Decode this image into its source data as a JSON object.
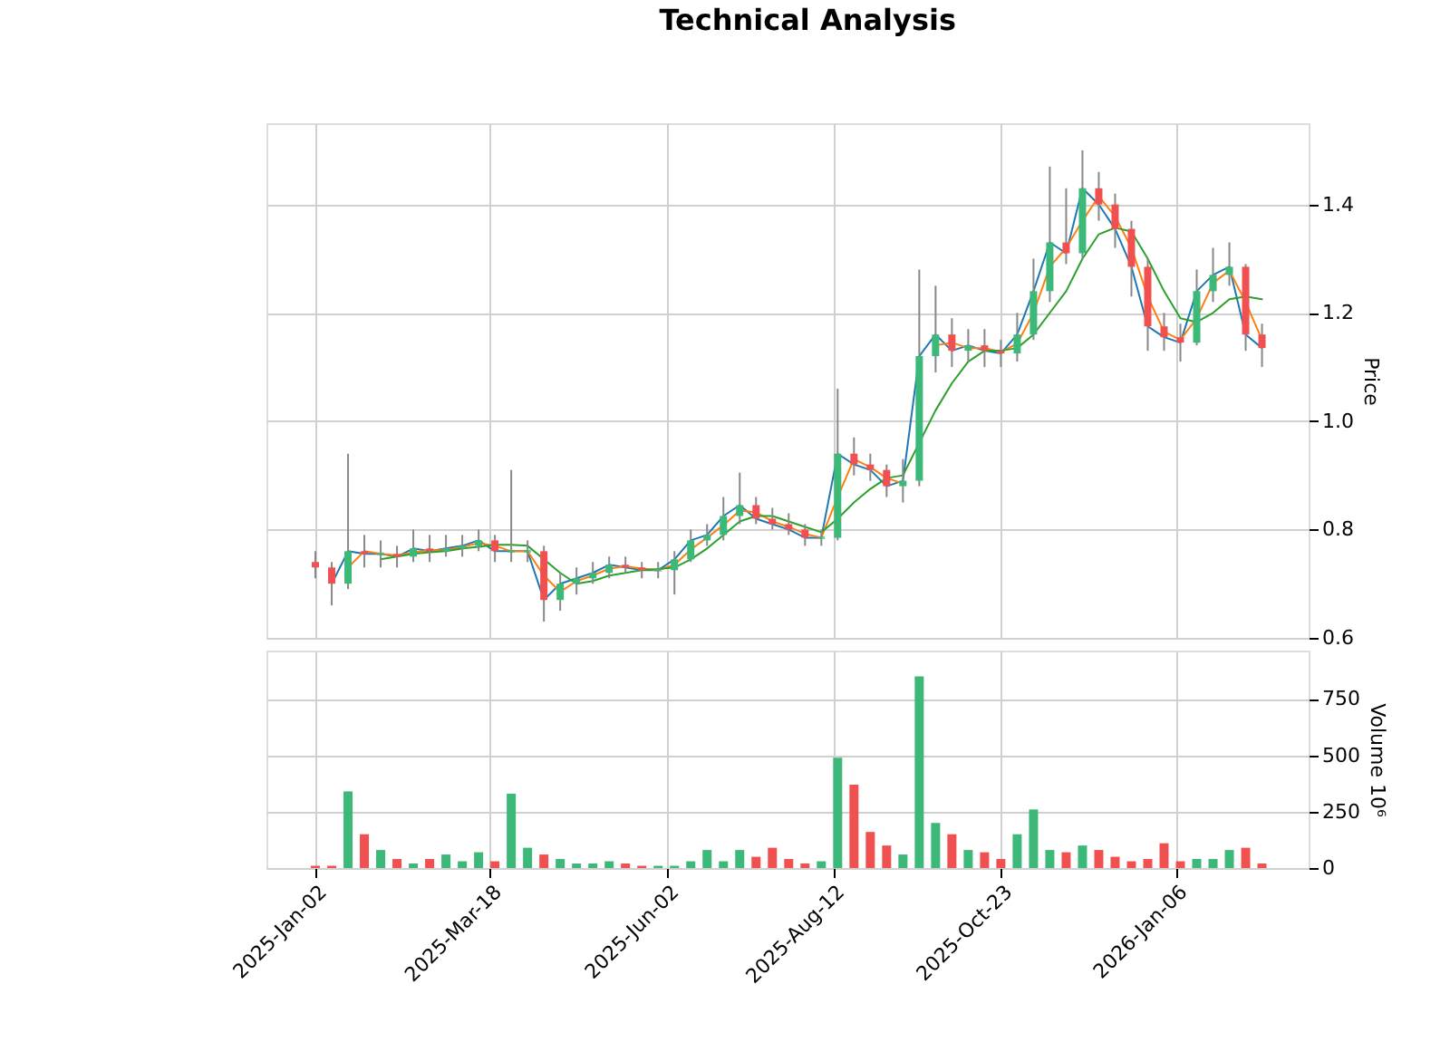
{
  "chart_data": [
    {
      "type": "candlestick",
      "title": "Technical Analysis",
      "ylabel": "Price",
      "grid": true,
      "tick_labels": "y",
      "x": [
        "2025-01-02",
        "2025-01-09",
        "2025-01-16",
        "2025-01-23",
        "2025-01-30",
        "2025-02-06",
        "2025-02-13",
        "2025-02-20",
        "2025-02-27",
        "2025-03-06",
        "2025-03-13",
        "2025-03-20",
        "2025-03-27",
        "2025-04-03",
        "2025-04-10",
        "2025-04-17",
        "2025-04-24",
        "2025-05-01",
        "2025-05-08",
        "2025-05-15",
        "2025-05-22",
        "2025-05-29",
        "2025-06-05",
        "2025-06-12",
        "2025-06-19",
        "2025-06-26",
        "2025-07-03",
        "2025-07-10",
        "2025-07-17",
        "2025-07-24",
        "2025-07-31",
        "2025-08-07",
        "2025-08-14",
        "2025-08-21",
        "2025-08-28",
        "2025-09-04",
        "2025-09-11",
        "2025-09-18",
        "2025-09-25",
        "2025-10-02",
        "2025-10-09",
        "2025-10-16",
        "2025-10-23",
        "2025-10-30",
        "2025-11-06",
        "2025-11-13",
        "2025-11-20",
        "2025-11-27",
        "2025-12-04",
        "2025-12-11",
        "2025-12-18",
        "2025-12-25",
        "2026-01-01",
        "2026-01-08",
        "2026-01-15",
        "2026-01-22",
        "2026-01-29",
        "2026-02-05",
        "2026-02-12"
      ],
      "ohlc": [
        [
          0.74,
          0.76,
          0.71,
          0.73
        ],
        [
          0.73,
          0.74,
          0.66,
          0.7
        ],
        [
          0.7,
          0.94,
          0.69,
          0.76
        ],
        [
          0.76,
          0.79,
          0.73,
          0.755
        ],
        [
          0.755,
          0.78,
          0.73,
          0.755
        ],
        [
          0.755,
          0.77,
          0.73,
          0.75
        ],
        [
          0.75,
          0.8,
          0.74,
          0.765
        ],
        [
          0.765,
          0.79,
          0.74,
          0.76
        ],
        [
          0.76,
          0.79,
          0.75,
          0.765
        ],
        [
          0.765,
          0.79,
          0.75,
          0.77
        ],
        [
          0.77,
          0.8,
          0.76,
          0.78
        ],
        [
          0.78,
          0.79,
          0.74,
          0.76
        ],
        [
          0.76,
          0.91,
          0.74,
          0.76
        ],
        [
          0.76,
          0.78,
          0.74,
          0.76
        ],
        [
          0.76,
          0.77,
          0.63,
          0.67
        ],
        [
          0.67,
          0.72,
          0.65,
          0.7
        ],
        [
          0.7,
          0.73,
          0.68,
          0.71
        ],
        [
          0.71,
          0.74,
          0.7,
          0.72
        ],
        [
          0.72,
          0.75,
          0.71,
          0.735
        ],
        [
          0.735,
          0.75,
          0.72,
          0.73
        ],
        [
          0.73,
          0.74,
          0.71,
          0.725
        ],
        [
          0.725,
          0.74,
          0.71,
          0.725
        ],
        [
          0.725,
          0.76,
          0.68,
          0.745
        ],
        [
          0.745,
          0.8,
          0.74,
          0.78
        ],
        [
          0.78,
          0.81,
          0.77,
          0.79
        ],
        [
          0.79,
          0.86,
          0.78,
          0.825
        ],
        [
          0.825,
          0.905,
          0.81,
          0.845
        ],
        [
          0.845,
          0.86,
          0.81,
          0.82
        ],
        [
          0.82,
          0.84,
          0.8,
          0.81
        ],
        [
          0.81,
          0.83,
          0.79,
          0.8
        ],
        [
          0.8,
          0.81,
          0.77,
          0.785
        ],
        [
          0.785,
          0.8,
          0.77,
          0.785
        ],
        [
          0.785,
          1.06,
          0.78,
          0.94
        ],
        [
          0.94,
          0.97,
          0.9,
          0.92
        ],
        [
          0.92,
          0.94,
          0.89,
          0.91
        ],
        [
          0.91,
          0.92,
          0.86,
          0.88
        ],
        [
          0.88,
          0.93,
          0.85,
          0.89
        ],
        [
          0.89,
          1.28,
          0.88,
          1.12
        ],
        [
          1.12,
          1.25,
          1.09,
          1.16
        ],
        [
          1.16,
          1.19,
          1.1,
          1.13
        ],
        [
          1.13,
          1.17,
          1.11,
          1.14
        ],
        [
          1.14,
          1.17,
          1.1,
          1.13
        ],
        [
          1.13,
          1.15,
          1.1,
          1.125
        ],
        [
          1.125,
          1.2,
          1.11,
          1.16
        ],
        [
          1.16,
          1.3,
          1.15,
          1.24
        ],
        [
          1.24,
          1.47,
          1.22,
          1.33
        ],
        [
          1.33,
          1.43,
          1.29,
          1.31
        ],
        [
          1.31,
          1.5,
          1.3,
          1.43
        ],
        [
          1.43,
          1.46,
          1.37,
          1.4
        ],
        [
          1.4,
          1.42,
          1.32,
          1.355
        ],
        [
          1.355,
          1.37,
          1.23,
          1.285
        ],
        [
          1.285,
          1.3,
          1.13,
          1.175
        ],
        [
          1.175,
          1.2,
          1.13,
          1.155
        ],
        [
          1.155,
          1.18,
          1.11,
          1.145
        ],
        [
          1.145,
          1.28,
          1.14,
          1.24
        ],
        [
          1.24,
          1.32,
          1.22,
          1.27
        ],
        [
          1.27,
          1.33,
          1.25,
          1.285
        ],
        [
          1.285,
          1.29,
          1.13,
          1.16
        ],
        [
          1.16,
          1.18,
          1.1,
          1.135
        ]
      ],
      "colors": [
        "#f05050",
        "#f05050",
        "#3cb878",
        "#f05050",
        "#3cb878",
        "#f05050",
        "#3cb878",
        "#f05050",
        "#3cb878",
        "#3cb878",
        "#3cb878",
        "#f05050",
        "#3cb878",
        "#3cb878",
        "#f05050",
        "#3cb878",
        "#3cb878",
        "#3cb878",
        "#3cb878",
        "#f05050",
        "#f05050",
        "#3cb878",
        "#3cb878",
        "#3cb878",
        "#3cb878",
        "#3cb878",
        "#3cb878",
        "#f05050",
        "#f05050",
        "#f05050",
        "#f05050",
        "#3cb878",
        "#3cb878",
        "#f05050",
        "#f05050",
        "#f05050",
        "#3cb878",
        "#3cb878",
        "#3cb878",
        "#f05050",
        "#3cb878",
        "#f05050",
        "#f05050",
        "#3cb878",
        "#3cb878",
        "#3cb878",
        "#f05050",
        "#3cb878",
        "#f05050",
        "#f05050",
        "#f05050",
        "#f05050",
        "#f05050",
        "#f05050",
        "#3cb878",
        "#3cb878",
        "#3cb878",
        "#f05050",
        "#f05050"
      ],
      "series": [
        {
          "type": "line",
          "color": "#1f77b4",
          "values": [
            null,
            0.7,
            0.76,
            0.755,
            0.755,
            0.75,
            0.765,
            0.76,
            0.765,
            0.77,
            0.78,
            0.76,
            0.76,
            0.76,
            0.67,
            0.7,
            0.71,
            0.72,
            0.735,
            0.73,
            0.725,
            0.725,
            0.745,
            0.78,
            0.79,
            0.825,
            0.845,
            0.82,
            0.81,
            0.8,
            0.785,
            0.785,
            0.94,
            0.92,
            0.91,
            0.88,
            0.89,
            1.12,
            1.16,
            1.13,
            1.14,
            1.13,
            1.125,
            1.16,
            1.24,
            1.33,
            1.31,
            1.43,
            1.4,
            1.355,
            1.285,
            1.175,
            1.155,
            1.145,
            1.24,
            1.27,
            1.285,
            1.16,
            1.135
          ]
        },
        {
          "type": "line",
          "color": "#ff7f0e",
          "values": [
            null,
            null,
            0.73,
            0.76,
            0.755,
            0.752,
            0.758,
            0.762,
            0.762,
            0.768,
            0.775,
            0.77,
            0.76,
            0.76,
            0.715,
            0.685,
            0.705,
            0.715,
            0.728,
            0.732,
            0.728,
            0.725,
            0.735,
            0.763,
            0.785,
            0.808,
            0.835,
            0.832,
            0.815,
            0.805,
            0.792,
            0.785,
            0.86,
            0.93,
            0.915,
            0.895,
            0.885,
            null,
            1.14,
            1.145,
            1.135,
            1.135,
            1.128,
            1.143,
            1.2,
            1.285,
            1.32,
            1.37,
            1.415,
            1.378,
            1.32,
            1.23,
            1.165,
            1.15,
            1.19,
            1.255,
            1.278,
            1.22,
            1.15
          ]
        },
        {
          "type": "line",
          "color": "#2ca02c",
          "values": [
            null,
            null,
            null,
            null,
            0.745,
            0.75,
            0.755,
            0.758,
            0.76,
            0.765,
            0.768,
            0.772,
            0.772,
            0.77,
            0.745,
            0.72,
            0.7,
            0.705,
            0.715,
            0.72,
            0.725,
            0.727,
            0.73,
            0.745,
            0.765,
            0.79,
            0.815,
            0.825,
            0.825,
            0.815,
            0.805,
            0.795,
            0.82,
            0.85,
            0.875,
            0.895,
            0.9,
            0.96,
            1.02,
            1.07,
            1.11,
            1.13,
            1.13,
            1.135,
            1.16,
            1.2,
            1.24,
            1.3,
            1.345,
            1.357,
            1.35,
            1.3,
            1.24,
            1.19,
            1.183,
            1.2,
            1.225,
            1.23,
            1.225
          ]
        }
      ],
      "xlim": [
        "2024-12-12",
        "2026-03-04"
      ],
      "xticks": [
        {
          "value": "2025-01-02",
          "label": null
        },
        {
          "value": "2025-03-18",
          "label": null
        },
        {
          "value": "2025-06-02",
          "label": null
        },
        {
          "value": "2025-08-12",
          "label": null
        },
        {
          "value": "2025-10-23",
          "label": null
        },
        {
          "value": "2026-01-06",
          "label": null
        }
      ],
      "ylim": [
        0.6,
        1.55
      ],
      "yticks": [
        0.6,
        0.8,
        {
          "value": 1.0,
          "label": "1.0"
        },
        1.2,
        1.4
      ]
    },
    {
      "type": "bar",
      "ylabel": "Volume  10⁶",
      "grid": true,
      "x": [
        "2025-01-02",
        "2025-01-09",
        "2025-01-16",
        "2025-01-23",
        "2025-01-30",
        "2025-02-06",
        "2025-02-13",
        "2025-02-20",
        "2025-02-27",
        "2025-03-06",
        "2025-03-13",
        "2025-03-20",
        "2025-03-27",
        "2025-04-03",
        "2025-04-10",
        "2025-04-17",
        "2025-04-24",
        "2025-05-01",
        "2025-05-08",
        "2025-05-15",
        "2025-05-22",
        "2025-05-29",
        "2025-06-05",
        "2025-06-12",
        "2025-06-19",
        "2025-06-26",
        "2025-07-03",
        "2025-07-10",
        "2025-07-17",
        "2025-07-24",
        "2025-07-31",
        "2025-08-07",
        "2025-08-14",
        "2025-08-21",
        "2025-08-28",
        "2025-09-04",
        "2025-09-11",
        "2025-09-18",
        "2025-09-25",
        "2025-10-02",
        "2025-10-09",
        "2025-10-16",
        "2025-10-23",
        "2025-10-30",
        "2025-11-06",
        "2025-11-13",
        "2025-11-20",
        "2025-11-27",
        "2025-12-04",
        "2025-12-11",
        "2025-12-18",
        "2025-12-25",
        "2026-01-01",
        "2026-01-08",
        "2026-01-15",
        "2026-01-22",
        "2026-01-29",
        "2026-02-05",
        "2026-02-12"
      ],
      "values": [
        10,
        10,
        340,
        150,
        80,
        40,
        20,
        40,
        60,
        30,
        70,
        30,
        330,
        90,
        60,
        40,
        20,
        20,
        30,
        20,
        10,
        10,
        10,
        30,
        80,
        30,
        80,
        50,
        90,
        40,
        20,
        30,
        490,
        370,
        160,
        100,
        60,
        850,
        200,
        150,
        80,
        70,
        40,
        150,
        260,
        80,
        70,
        100,
        80,
        50,
        30,
        40,
        110,
        30,
        40,
        40,
        80,
        90,
        20
      ],
      "colors": [
        "#f05050",
        "#f05050",
        "#3cb878",
        "#f05050",
        "#3cb878",
        "#f05050",
        "#3cb878",
        "#f05050",
        "#3cb878",
        "#3cb878",
        "#3cb878",
        "#f05050",
        "#3cb878",
        "#3cb878",
        "#f05050",
        "#3cb878",
        "#3cb878",
        "#3cb878",
        "#3cb878",
        "#f05050",
        "#f05050",
        "#3cb878",
        "#3cb878",
        "#3cb878",
        "#3cb878",
        "#3cb878",
        "#3cb878",
        "#f05050",
        "#f05050",
        "#f05050",
        "#f05050",
        "#3cb878",
        "#3cb878",
        "#f05050",
        "#f05050",
        "#f05050",
        "#3cb878",
        "#3cb878",
        "#3cb878",
        "#f05050",
        "#3cb878",
        "#f05050",
        "#f05050",
        "#3cb878",
        "#3cb878",
        "#3cb878",
        "#f05050",
        "#3cb878",
        "#f05050",
        "#f05050",
        "#f05050",
        "#f05050",
        "#f05050",
        "#f05050",
        "#3cb878",
        "#3cb878",
        "#3cb878",
        "#f05050",
        "#f05050"
      ],
      "xlim": [
        "2024-12-12",
        "2026-03-04"
      ],
      "xticks": [
        {
          "value": "2025-01-02",
          "label": "2025-Jan-02"
        },
        {
          "value": "2025-03-18",
          "label": "2025-Mar-18"
        },
        {
          "value": "2025-06-02",
          "label": "2025-Jun-02"
        },
        {
          "value": "2025-08-12",
          "label": "2025-Aug-12"
        },
        {
          "value": "2025-10-23",
          "label": "2025-Oct-23"
        },
        {
          "value": "2026-01-06",
          "label": "2026-Jan-06"
        }
      ],
      "ylim": [
        0,
        965
      ],
      "yticks": [
        0,
        250,
        500,
        750
      ]
    }
  ]
}
